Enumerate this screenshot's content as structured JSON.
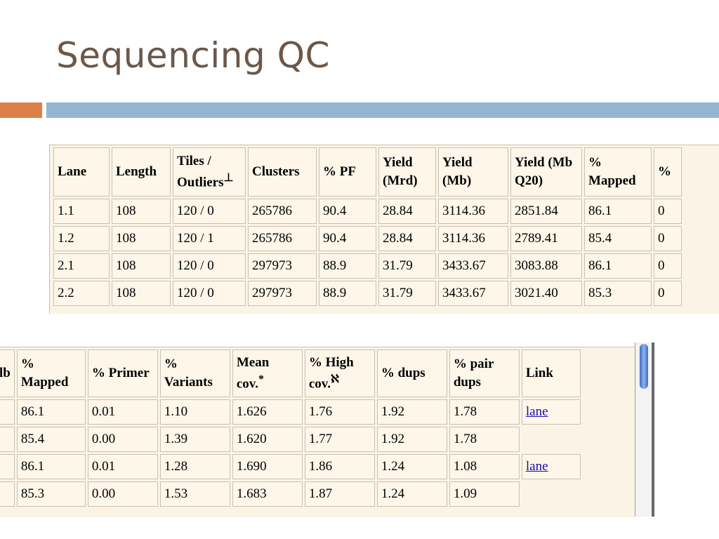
{
  "slide": {
    "title": "Sequencing QC"
  },
  "colors": {
    "title": "#6b5849",
    "orange_bar": "#dd8048",
    "blue_bar": "#94b6d2",
    "cell_bg": "#fdf6e9",
    "link": "#1a0dab"
  },
  "table1": {
    "headers": {
      "lane": "Lane",
      "length": "Length",
      "tiles_line1": "Tiles /",
      "tiles_line2": "Outliers",
      "tiles_mark": "⊥",
      "clusters": "Clusters",
      "pf": "% PF",
      "yield_mrd_1": "Yield",
      "yield_mrd_2": "(Mrd)",
      "yield_mb_1": "Yield",
      "yield_mb_2": "(Mb)",
      "yield_q20_1": "Yield (Mb",
      "yield_q20_2": "Q20)",
      "mapped_1": "%",
      "mapped_2": "Mapped",
      "next": "%"
    },
    "rows": [
      [
        "1.1",
        "108",
        "120 / 0",
        "265786",
        "90.4",
        "28.84",
        "3114.36",
        "2851.84",
        "86.1",
        "0"
      ],
      [
        "1.2",
        "108",
        "120 / 1",
        "265786",
        "90.4",
        "28.84",
        "3114.36",
        "2789.41",
        "85.4",
        "0"
      ],
      [
        "2.1",
        "108",
        "120 / 0",
        "297973",
        "88.9",
        "31.79",
        "3433.67",
        "3083.88",
        "86.1",
        "0"
      ],
      [
        "2.2",
        "108",
        "120 / 0",
        "297973",
        "88.9",
        "31.79",
        "3433.67",
        "3021.40",
        "85.3",
        "0"
      ]
    ]
  },
  "table2": {
    "headers": {
      "prev": "lb",
      "mapped_1": "%",
      "mapped_2": "Mapped",
      "primer": "% Primer",
      "variants_1": "%",
      "variants_2": "Variants",
      "mean_1": "Mean",
      "mean_2": "cov.",
      "mean_mark": "*",
      "high_1": "% High",
      "high_2": "cov.",
      "high_mark": "ℵ",
      "dups": "% dups",
      "pair_1": "% pair",
      "pair_2": "dups",
      "link": "Link"
    },
    "rows": [
      [
        "86.1",
        "0.01",
        "1.10",
        "1.626",
        "1.76",
        "1.92",
        "1.78",
        "lane"
      ],
      [
        "85.4",
        "0.00",
        "1.39",
        "1.620",
        "1.77",
        "1.92",
        "1.78",
        ""
      ],
      [
        "86.1",
        "0.01",
        "1.28",
        "1.690",
        "1.86",
        "1.24",
        "1.08",
        "lane"
      ],
      [
        "85.3",
        "0.00",
        "1.53",
        "1.683",
        "1.87",
        "1.24",
        "1.09",
        ""
      ]
    ]
  }
}
